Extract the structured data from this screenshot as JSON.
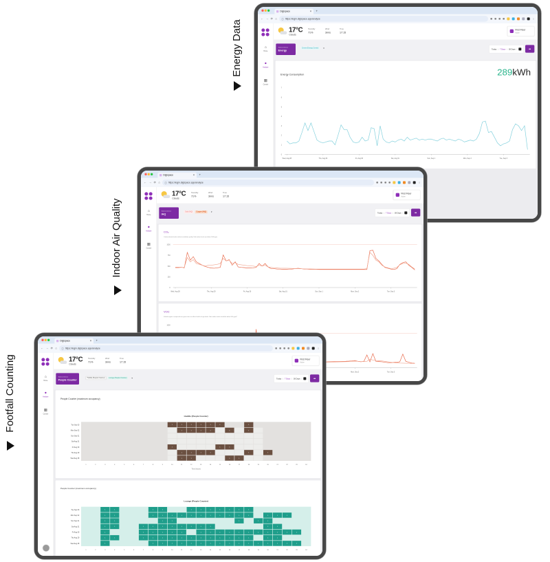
{
  "side_labels": {
    "energy": "Energy Data",
    "iaq": "Indoor Air Quality",
    "footfall": "Footfall Counting"
  },
  "browser": {
    "tab_title": "Digispace",
    "url": "https://login.digispace.app/analyse"
  },
  "nav": [
    {
      "label": "Home",
      "icon": "home-icon"
    },
    {
      "label": "Analyse",
      "icon": "analyse-icon",
      "active": true
    },
    {
      "label": "Control",
      "icon": "grid-icon"
    }
  ],
  "weather": {
    "temperature": "17°C",
    "condition": "Clouds",
    "humidity_label": "Humidity",
    "humidity": "71%",
    "wind_label": "Wind",
    "wind": "3m/s",
    "time_label": "Time",
    "time": "17:15"
  },
  "floor": {
    "name": "First Floor",
    "status": "Active"
  },
  "selected_device_label": "Selected Device",
  "date_range": {
    "today": "Today",
    "week": "7 Days",
    "month": "30 Days"
  },
  "energy": {
    "device": "Energy",
    "chips": [
      "Centre (Energy Centre)"
    ],
    "card_title": "Energy Consumption",
    "total_value": "289",
    "total_unit": "kWh"
  },
  "iaq": {
    "device": "IAQ",
    "chips": [
      "Gold (IAQ)",
      "Copper (IAQ)"
    ],
    "co2": {
      "title": "CO₂",
      "description": "Carbon dioxide levels indicate ventilation quality. Safe indoor levels are below 1000 ppm"
    },
    "voc": {
      "title": "VOC",
      "description": "Volatile organic compounds are gases that can affect health at high levels. Safe indoor levels should be below 500 µg/m³"
    }
  },
  "footfall": {
    "device": "People Counter",
    "chips": [
      "Huddle (People Counter)",
      "Lounge (People Counter)"
    ],
    "card_title": "People Counter (maximum occupancy)"
  },
  "colors": {
    "brand": "#7d2aa3",
    "energy_total": "#2bb58c",
    "energy_line": "#7fcfdc",
    "co2_line_1": "#e8694a",
    "co2_line_2": "#f0a48e",
    "threshold": "#f6c7bd",
    "huddle_cell": "#6b5041",
    "lounge_cell": "#1f9e8b",
    "lounge_bg": "#d5efea"
  },
  "chart_data": [
    {
      "id": "energy",
      "type": "line",
      "title": "Energy Consumption",
      "ylim": [
        0,
        7
      ],
      "y_ticks": [
        "0",
        "1",
        "2",
        "3",
        "4",
        "5",
        "6",
        "7"
      ],
      "x_ticks": [
        "Wed, Aug 28",
        "Thu, Aug 29",
        "Fri, Aug 30",
        "Sat, Aug 31",
        "Sun, Sep 1",
        "Mon, Sep 2",
        "Tue, Sep 3"
      ],
      "series": [
        {
          "values": [
            1.4,
            1.1,
            1.2,
            1.2,
            1.4,
            2.3,
            3.3,
            2.5,
            3.3,
            2.4,
            1.5,
            1.3,
            1.2,
            1.3,
            1.4,
            1.4,
            1.0,
            2.0,
            3.1,
            2.6,
            2.6,
            1.8,
            1.3,
            1.2,
            1.3,
            1.8,
            1.4,
            1.5,
            2.8,
            2.7,
            0.9,
            3.0,
            1.6,
            1.3,
            1.2,
            1.4,
            1.3,
            1.5,
            1.6,
            1.4,
            1.8,
            1.5,
            1.6,
            1.7,
            1.5,
            1.6,
            1.5,
            1.6,
            1.6,
            1.5,
            1.4,
            1.6,
            1.7,
            1.5,
            1.6,
            1.5,
            1.4,
            1.6,
            1.5,
            1.3,
            1.4,
            1.5,
            1.4,
            1.6,
            2.2,
            3.4,
            3.5,
            2.3,
            2.4,
            1.8,
            1.2,
            0.9,
            1.1,
            1.2,
            1.4,
            2.6,
            3.2,
            3.0,
            2.5,
            3.0,
            0.5
          ]
        }
      ]
    },
    {
      "id": "co2",
      "type": "line",
      "title": "CO₂",
      "ylim": [
        0,
        1000
      ],
      "threshold": 1000,
      "y_ticks": [
        "0",
        "250",
        "500",
        "750",
        "1000"
      ],
      "x_ticks": [
        "Wed, Aug 28",
        "Thu, Aug 29",
        "Fri, Aug 30",
        "Sat, Aug 31",
        "Sun, Sep 1",
        "Mon, Sep 2",
        "Tue, Sep 3"
      ],
      "series": [
        {
          "values": [
            470,
            470,
            475,
            460,
            820,
            640,
            720,
            600,
            560,
            520,
            490,
            470,
            455,
            450,
            460,
            470,
            760,
            620,
            650,
            520,
            600,
            480,
            470,
            465,
            455,
            455,
            460,
            470,
            560,
            500,
            560,
            480,
            440,
            440,
            430,
            430,
            425,
            425,
            430,
            430,
            440,
            450,
            440,
            430,
            430,
            425,
            425,
            425,
            420,
            420,
            420,
            420,
            420,
            420,
            420,
            420,
            420,
            420,
            420,
            420,
            420,
            420,
            420,
            420,
            420,
            860,
            870,
            680,
            620,
            540,
            470,
            450,
            430,
            420,
            440,
            540,
            580,
            600,
            520,
            470,
            410
          ]
        },
        {
          "values": [
            460,
            460,
            470,
            470,
            700,
            600,
            650,
            560,
            540,
            520,
            500,
            520,
            520,
            530,
            540,
            560,
            680,
            620,
            640,
            560,
            580,
            540,
            530,
            520,
            510,
            505,
            500,
            490,
            520,
            500,
            520,
            480,
            470,
            460,
            455,
            450,
            450,
            450,
            448,
            445,
            440,
            440,
            438,
            436,
            435,
            434,
            432,
            430,
            430,
            430,
            430,
            430,
            430,
            430,
            430,
            430,
            430,
            430,
            430,
            430,
            430,
            430,
            430,
            430,
            440,
            820,
            750,
            640,
            600,
            520,
            480,
            460,
            440,
            450,
            470,
            530,
            560,
            570,
            540,
            480,
            430
          ]
        }
      ]
    },
    {
      "id": "voc",
      "type": "line",
      "title": "VOC",
      "ylim": [
        0,
        1000
      ],
      "threshold": 800,
      "y_ticks": [
        "1000"
      ],
      "x_ticks": [
        "Wed, Aug 28",
        "Thu, Aug 29",
        "Fri, Aug 30",
        "Sat, Aug 31",
        "Sun, Sep 1",
        "Mon, Sep 2",
        "Tue, Sep 3"
      ],
      "series": [
        {
          "values": [
            110,
            110,
            112,
            115,
            120,
            118,
            116,
            114,
            112,
            110,
            110,
            110,
            110,
            112,
            115,
            118,
            120,
            118,
            116,
            114,
            112,
            110,
            110,
            110,
            110,
            112,
            115,
            900,
            130,
            120,
            118,
            116,
            114,
            112,
            110,
            110,
            110,
            112,
            114,
            116,
            118,
            120,
            122,
            124,
            126,
            128,
            130,
            132,
            134,
            136,
            138,
            140,
            142,
            144,
            146,
            148,
            150,
            152,
            155,
            160,
            170,
            150,
            140,
            150,
            300,
            140,
            330,
            150,
            145,
            140,
            130,
            120,
            120,
            125,
            130,
            140,
            320,
            150,
            130,
            110,
            105
          ]
        },
        {
          "values": [
            100,
            100,
            102,
            104,
            106,
            108,
            106,
            104,
            102,
            100,
            100,
            100,
            100,
            102,
            104,
            106,
            108,
            106,
            104,
            102,
            100,
            100,
            100,
            100,
            100,
            102,
            104,
            106,
            108,
            106,
            104,
            102,
            100,
            100,
            100,
            100,
            100,
            102,
            104,
            106,
            108,
            110,
            112,
            114,
            116,
            118,
            120,
            122,
            124,
            126,
            128,
            130,
            132,
            134,
            136,
            138,
            140,
            142,
            145,
            150,
            155,
            150,
            145,
            145,
            150,
            200,
            180,
            170,
            165,
            160,
            150,
            140,
            130,
            120,
            115,
            110,
            108,
            106,
            104,
            102,
            100
          ]
        }
      ]
    },
    {
      "id": "huddle",
      "type": "heatmap",
      "title": "Huddle (People Counter)",
      "xlabel": "Time (hours)",
      "x_labels": [
        "1",
        "2",
        "3",
        "4",
        "5",
        "6",
        "7",
        "8",
        "9",
        "10",
        "11",
        "12",
        "13",
        "14",
        "15",
        "16",
        "17",
        "18",
        "19",
        "20",
        "21",
        "22",
        "23",
        "24"
      ],
      "rows": [
        {
          "label": "Tue Sep 03",
          "cells": {
            "10": 1,
            "11": 1,
            "12": 1,
            "13": 1,
            "14": 1,
            "15": 1,
            "18": 1
          }
        },
        {
          "label": "Mon Sep 02",
          "cells": {
            "11": 1,
            "12": 1,
            "13": 1,
            "14": 1,
            "16": 1,
            "18": 1
          }
        },
        {
          "label": "Sun Sep 01",
          "cells": {}
        },
        {
          "label": "Sat Aug 31",
          "cells": {}
        },
        {
          "label": "Fri Aug 30",
          "cells": {
            "10": 1,
            "15": 1,
            "16": 1
          }
        },
        {
          "label": "Thu Aug 29",
          "cells": {
            "11": 1,
            "12": 1,
            "13": 1,
            "14": 1,
            "18": 1,
            "20": 1
          }
        },
        {
          "label": "Wed Aug 28",
          "cells": {
            "11": 1,
            "12": 1,
            "16": 1,
            "17": 1
          }
        }
      ]
    },
    {
      "id": "lounge",
      "type": "heatmap",
      "title": "Lounge (People Counter)",
      "x_labels": [
        "1",
        "2",
        "3",
        "4",
        "5",
        "6",
        "7",
        "8",
        "9",
        "10",
        "11",
        "12",
        "13",
        "14",
        "15",
        "16",
        "17",
        "18",
        "19",
        "20",
        "21",
        "22",
        "23",
        "24"
      ],
      "rows": [
        {
          "label": "Tue Sep 03",
          "cells": {
            "3": 1,
            "4": 1,
            "8": 1,
            "9": 1,
            "12": 1,
            "13": 1,
            "14": 1,
            "15": 1,
            "16": 1,
            "17": 1,
            "18": 1
          }
        },
        {
          "label": "Mon Sep 02",
          "cells": {
            "3": 1,
            "4": 1,
            "8": 1,
            "9": 1,
            "10": 1,
            "11": 1,
            "12": 1,
            "13": 1,
            "14": 1,
            "15": 1,
            "16": 1,
            "17": 1,
            "18": 1,
            "20": 1,
            "21": 1,
            "22": 1
          }
        },
        {
          "label": "Sun Sep 01",
          "cells": {
            "3": 1,
            "4": 1,
            "9": 1,
            "10": 1,
            "17": 1,
            "19": 1,
            "20": 1
          }
        },
        {
          "label": "Sat Aug 31",
          "cells": {
            "3": 1,
            "4": 1,
            "7": 1,
            "8": 1,
            "9": 1,
            "10": 1,
            "11": 1,
            "12": 1,
            "13": 1,
            "14": 1,
            "20": 1,
            "21": 1
          }
        },
        {
          "label": "Fri Aug 30",
          "cells": {
            "3": 1,
            "7": 1,
            "8": 1,
            "9": 1,
            "10": 1,
            "11": 1,
            "13": 1,
            "14": 1,
            "15": 1,
            "16": 1,
            "17": 1,
            "18": 1,
            "19": 1,
            "20": 1,
            "21": 1,
            "22": 1,
            "23": 1
          }
        },
        {
          "label": "Thu Aug 29",
          "cells": {
            "3": 1,
            "4": 1,
            "7": 1,
            "8": 1,
            "9": 1,
            "10": 1,
            "11": 1,
            "12": 1,
            "13": 1,
            "14": 1,
            "15": 1,
            "16": 1,
            "17": 1,
            "18": 1,
            "20": 1,
            "21": 1
          }
        },
        {
          "label": "Wed Aug 28",
          "cells": {
            "3": 1,
            "8": 1,
            "9": 1,
            "10": 1,
            "11": 1,
            "12": 1,
            "13": 1,
            "14": 1,
            "15": 1,
            "16": 1,
            "17": 1,
            "18": 1,
            "19": 1,
            "20": 1,
            "21": 1,
            "22": 1,
            "23": 1
          }
        }
      ]
    }
  ]
}
